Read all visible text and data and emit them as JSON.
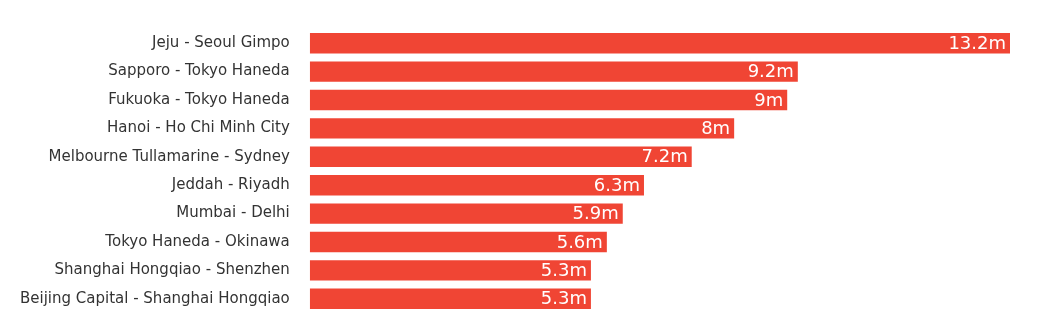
{
  "chart_data": {
    "type": "bar",
    "orientation": "horizontal",
    "categories": [
      "Jeju - Seoul Gimpo",
      "Sapporo - Tokyo Haneda",
      "Fukuoka - Tokyo Haneda",
      "Hanoi - Ho Chi Minh City",
      "Melbourne Tullamarine - Sydney",
      "Jeddah - Riyadh",
      "Mumbai - Delhi",
      "Tokyo Haneda - Okinawa",
      "Shanghai Hongqiao - Shenzhen",
      "Beijing Capital - Shanghai Hongqiao"
    ],
    "values": [
      13.2,
      9.2,
      9,
      8,
      7.2,
      6.3,
      5.9,
      5.6,
      5.3,
      5.3
    ],
    "value_labels": [
      "13.2m",
      "9.2m",
      "9m",
      "8m",
      "7.2m",
      "6.3m",
      "5.9m",
      "5.6m",
      "5.3m",
      "5.3m"
    ],
    "color": "#f04534"
  }
}
